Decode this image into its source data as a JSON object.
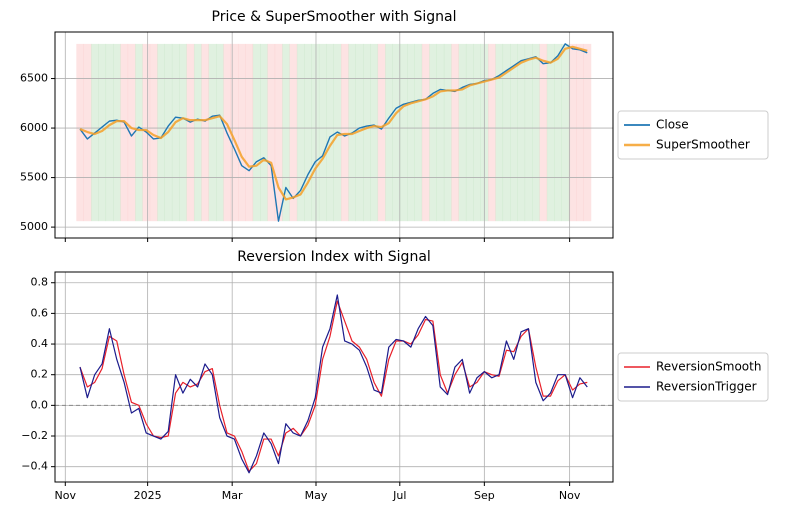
{
  "chart_data": [
    {
      "type": "line",
      "title": "Price & SuperSmoother with Signal",
      "xlim": [
        -3.4,
        72.5
      ],
      "xticks": [
        -2.0,
        9.2,
        20.7,
        32.1,
        43.5,
        55.0,
        66.6
      ],
      "ylim": [
        4890,
        6970
      ],
      "yticks": [
        5000,
        5500,
        6000,
        6500
      ],
      "grid": true,
      "legend": "outside right",
      "signal": {
        "up_color": "rgba(60,170,60,0.16)",
        "down_color": "rgba(245,80,80,0.16)",
        "values": [
          -1,
          -1,
          1,
          1,
          1,
          1,
          -1,
          -1,
          1,
          -1,
          -1,
          1,
          1,
          1,
          1,
          -1,
          1,
          -1,
          1,
          1,
          -1,
          -1,
          -1,
          -1,
          1,
          1,
          -1,
          -1,
          1,
          -1,
          1,
          1,
          1,
          1,
          1,
          1,
          -1,
          1,
          1,
          1,
          1,
          -1,
          1,
          1,
          1,
          1,
          1,
          -1,
          1,
          1,
          1,
          -1,
          1,
          1,
          1,
          1,
          -1,
          1,
          1,
          1,
          1,
          1,
          1,
          -1,
          1,
          1,
          1,
          -1,
          -1,
          -1
        ]
      },
      "series": [
        {
          "name": "Close",
          "color": "#1f77b4",
          "width": 1.4,
          "values": [
            5990,
            5890,
            5950,
            6010,
            6070,
            6080,
            6060,
            5920,
            6010,
            5960,
            5890,
            5900,
            6020,
            6110,
            6100,
            6060,
            6090,
            6070,
            6120,
            6130,
            5950,
            5790,
            5620,
            5570,
            5660,
            5700,
            5620,
            5060,
            5400,
            5290,
            5370,
            5530,
            5660,
            5720,
            5910,
            5960,
            5920,
            5950,
            6000,
            6020,
            6030,
            5990,
            6100,
            6200,
            6240,
            6260,
            6280,
            6290,
            6350,
            6390,
            6380,
            6370,
            6410,
            6440,
            6450,
            6480,
            6490,
            6530,
            6580,
            6630,
            6680,
            6700,
            6720,
            6650,
            6660,
            6730,
            6850,
            6800,
            6790,
            6760
          ]
        },
        {
          "name": "SuperSmoother",
          "color": "rgba(245,160,40,0.85)",
          "width": 2.2,
          "values": [
            5990,
            5960,
            5940,
            5970,
            6030,
            6070,
            6070,
            6000,
            5980,
            5980,
            5930,
            5900,
            5960,
            6060,
            6100,
            6080,
            6080,
            6080,
            6100,
            6120,
            6040,
            5880,
            5710,
            5610,
            5620,
            5680,
            5650,
            5400,
            5280,
            5300,
            5330,
            5450,
            5590,
            5690,
            5820,
            5930,
            5940,
            5940,
            5970,
            6000,
            6020,
            6010,
            6050,
            6150,
            6220,
            6250,
            6270,
            6290,
            6320,
            6370,
            6380,
            6380,
            6390,
            6430,
            6450,
            6470,
            6490,
            6510,
            6560,
            6610,
            6660,
            6690,
            6710,
            6680,
            6660,
            6700,
            6800,
            6820,
            6800,
            6780
          ]
        }
      ]
    },
    {
      "type": "line",
      "title": "Reversion Index with Signal",
      "xlim": [
        -3.4,
        72.5
      ],
      "xticks": [
        {
          "value": -2.0,
          "label": "Nov"
        },
        {
          "value": 9.2,
          "label": "2025"
        },
        {
          "value": 20.7,
          "label": "Mar"
        },
        {
          "value": 32.1,
          "label": "May"
        },
        {
          "value": 43.5,
          "label": "Jul"
        },
        {
          "value": 55.0,
          "label": "Sep"
        },
        {
          "value": 66.6,
          "label": "Nov"
        }
      ],
      "ylim": [
        -0.5,
        0.87
      ],
      "yticks": [
        {
          "value": -0.4,
          "label": "−0.4"
        },
        {
          "value": -0.2,
          "label": "−0.2"
        },
        {
          "value": 0,
          "label": "0.0"
        },
        0.2,
        0.4,
        0.6,
        0.8
      ],
      "grid": true,
      "legend": "outside right",
      "hline": {
        "value": 0,
        "color": "#888888"
      },
      "series": [
        {
          "name": "ReversionSmooth",
          "color": "#e8202a",
          "width": 1.2,
          "values": [
            0.25,
            0.12,
            0.15,
            0.24,
            0.45,
            0.42,
            0.2,
            0.02,
            0.0,
            -0.12,
            -0.2,
            -0.21,
            -0.2,
            0.08,
            0.15,
            0.12,
            0.14,
            0.22,
            0.24,
            0.0,
            -0.18,
            -0.2,
            -0.3,
            -0.43,
            -0.38,
            -0.22,
            -0.22,
            -0.33,
            -0.18,
            -0.15,
            -0.2,
            -0.13,
            0.0,
            0.3,
            0.45,
            0.68,
            0.55,
            0.42,
            0.38,
            0.3,
            0.15,
            0.06,
            0.3,
            0.42,
            0.42,
            0.4,
            0.46,
            0.56,
            0.55,
            0.2,
            0.08,
            0.2,
            0.28,
            0.12,
            0.15,
            0.22,
            0.2,
            0.19,
            0.36,
            0.35,
            0.45,
            0.5,
            0.25,
            0.06,
            0.06,
            0.16,
            0.2,
            0.1,
            0.14,
            0.15
          ]
        },
        {
          "name": "ReversionTrigger",
          "color": "#1c1c8c",
          "width": 1.2,
          "values": [
            0.25,
            0.05,
            0.2,
            0.27,
            0.5,
            0.3,
            0.15,
            -0.05,
            -0.02,
            -0.18,
            -0.2,
            -0.22,
            -0.17,
            0.2,
            0.08,
            0.17,
            0.12,
            0.27,
            0.2,
            -0.08,
            -0.2,
            -0.22,
            -0.35,
            -0.44,
            -0.33,
            -0.18,
            -0.25,
            -0.38,
            -0.12,
            -0.18,
            -0.2,
            -0.1,
            0.05,
            0.38,
            0.5,
            0.72,
            0.42,
            0.4,
            0.36,
            0.25,
            0.1,
            0.08,
            0.38,
            0.43,
            0.42,
            0.38,
            0.5,
            0.58,
            0.52,
            0.12,
            0.07,
            0.25,
            0.3,
            0.08,
            0.18,
            0.22,
            0.18,
            0.2,
            0.42,
            0.3,
            0.48,
            0.5,
            0.15,
            0.03,
            0.08,
            0.2,
            0.2,
            0.05,
            0.18,
            0.12
          ]
        }
      ]
    }
  ]
}
